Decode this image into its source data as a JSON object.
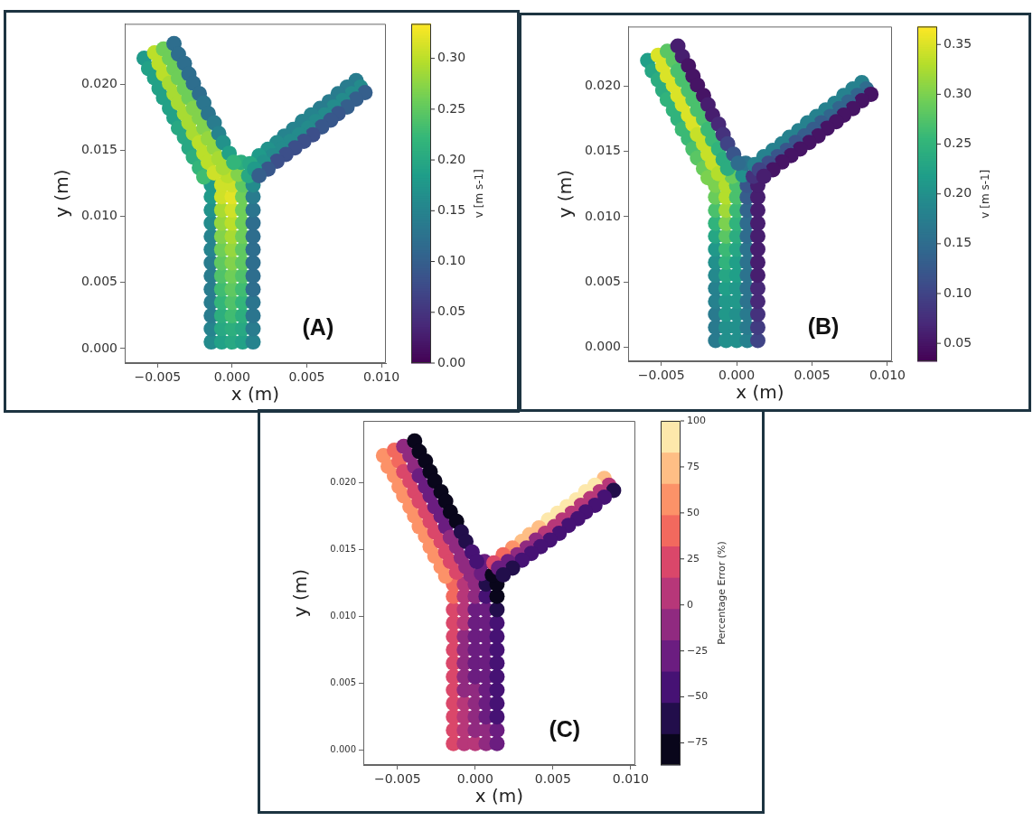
{
  "chart_data": [
    {
      "type": "scatter",
      "xlabel": "x (m)",
      "ylabel": "y (m)",
      "clabel": "v [m s-1]",
      "annotations": [
        "(A)"
      ],
      "marker": "circle",
      "xlim": [
        -0.0072,
        0.0103
      ],
      "ylim": [
        -0.0011,
        0.0246
      ],
      "xticks": [
        {
          "value": -0.005,
          "label": "−0.005"
        },
        {
          "value": 0,
          "label": "0.000"
        },
        {
          "value": 0.005,
          "label": "0.005"
        },
        {
          "value": 0.01,
          "label": "0.010"
        }
      ],
      "yticks": [
        {
          "value": 0,
          "label": "0.000"
        },
        {
          "value": 0.005,
          "label": "0.005"
        },
        {
          "value": 0.01,
          "label": "0.010"
        },
        {
          "value": 0.015,
          "label": "0.015"
        },
        {
          "value": 0.02,
          "label": "0.020"
        }
      ],
      "clim": [
        0,
        0.334
      ],
      "cticks": [
        {
          "value": 0,
          "label": "0.00"
        },
        {
          "value": 0.05,
          "label": "0.05"
        },
        {
          "value": 0.1,
          "label": "0.10"
        },
        {
          "value": 0.15,
          "label": "0.15"
        },
        {
          "value": 0.2,
          "label": "0.20"
        },
        {
          "value": 0.25,
          "label": "0.25"
        },
        {
          "value": 0.3,
          "label": "0.30"
        }
      ],
      "x": [
        -0.0014,
        -0.0007,
        0,
        0.0007,
        0.0014,
        -0.0014,
        -0.0007,
        0,
        0.0007,
        0.0014,
        -0.0014,
        -0.0007,
        0,
        0.0007,
        0.0014,
        -0.0014,
        -0.0007,
        0,
        0.0007,
        0.0014,
        -0.0014,
        -0.0007,
        0,
        0.0007,
        0.0014,
        -0.0014,
        -0.0007,
        0,
        0.0007,
        0.0014,
        -0.0014,
        -0.0007,
        0,
        0.0007,
        0.0014,
        -0.0014,
        -0.0007,
        0,
        0.0007,
        0.0014,
        -0.0014,
        -0.0007,
        0,
        0.0007,
        0.0014,
        -0.0014,
        -0.0007,
        0,
        0.0007,
        0.0014,
        -0.0014,
        -0.0007,
        0,
        0.0007,
        0.0014,
        -0.0014,
        -0.0007,
        0,
        0.0007,
        0.0014,
        -0.0014,
        -0.0007,
        0,
        0.0007,
        0.0014,
        -0.0003,
        0.0004,
        0.0011,
        0.0006,
        -0.0059,
        -0.0052,
        -0.0046,
        -0.0039,
        -0.0056,
        -0.0049,
        -0.0042,
        -0.0036,
        -0.0052,
        -0.0046,
        -0.0039,
        -0.0032,
        -0.0049,
        -0.0042,
        -0.0036,
        -0.0029,
        -0.0046,
        -0.0039,
        -0.0032,
        -0.0026,
        -0.0042,
        -0.0036,
        -0.0029,
        -0.0022,
        -0.0039,
        -0.0032,
        -0.0026,
        -0.0019,
        -0.0036,
        -0.0029,
        -0.0022,
        -0.0016,
        -0.0032,
        -0.0026,
        -0.0019,
        -0.0012,
        -0.0029,
        -0.0022,
        -0.0016,
        -0.0009,
        -0.0026,
        -0.0019,
        -0.0012,
        -0.0006,
        -0.0022,
        -0.0016,
        -0.0009,
        -0.0002,
        -0.0019,
        -0.0012,
        -0.0006,
        0.0001,
        0.0083,
        0.0086,
        0.0089,
        0.0077,
        0.008,
        0.0083,
        0.0071,
        0.0074,
        0.0077,
        0.0065,
        0.0068,
        0.0071,
        0.0059,
        0.0062,
        0.0066,
        0.0053,
        0.0056,
        0.006,
        0.0047,
        0.0051,
        0.0054,
        0.0041,
        0.0045,
        0.0048,
        0.0035,
        0.0039,
        0.0042,
        0.003,
        0.0033,
        0.0036,
        0.0024,
        0.0027,
        0.003,
        0.0018,
        0.0021,
        0.0024,
        0.0012,
        0.0015,
        0.0018
      ],
      "values": [
        0.0005,
        0.0005,
        0.0005,
        0.0005,
        0.0005,
        0.0015,
        0.0015,
        0.0015,
        0.0015,
        0.0015,
        0.0025,
        0.0025,
        0.0025,
        0.0025,
        0.0025,
        0.0035,
        0.0035,
        0.0035,
        0.0035,
        0.0035,
        0.0045,
        0.0045,
        0.0045,
        0.0045,
        0.0045,
        0.0055,
        0.0055,
        0.0055,
        0.0055,
        0.0055,
        0.0065,
        0.0065,
        0.0065,
        0.0065,
        0.0065,
        0.0075,
        0.0075,
        0.0075,
        0.0075,
        0.0075,
        0.0085,
        0.0085,
        0.0085,
        0.0085,
        0.0085,
        0.0095,
        0.0095,
        0.0095,
        0.0095,
        0.0095,
        0.0105,
        0.0105,
        0.0105,
        0.0105,
        0.0105,
        0.0115,
        0.0115,
        0.0115,
        0.0115,
        0.0115,
        0.0124,
        0.0124,
        0.0124,
        0.0124,
        0.0124,
        0.0131,
        0.0132,
        0.0131,
        0.0141,
        0.022,
        0.0224,
        0.0227,
        0.0231,
        0.0212,
        0.0216,
        0.022,
        0.0223,
        0.0205,
        0.0208,
        0.0212,
        0.0216,
        0.0197,
        0.0201,
        0.0205,
        0.0208,
        0.019,
        0.0193,
        0.0197,
        0.0201,
        0.0182,
        0.0186,
        0.019,
        0.0193,
        0.0175,
        0.0178,
        0.0182,
        0.0186,
        0.0167,
        0.0171,
        0.0175,
        0.0178,
        0.016,
        0.0163,
        0.0167,
        0.0171,
        0.0152,
        0.0156,
        0.0159,
        0.0163,
        0.0145,
        0.0148,
        0.0152,
        0.0156,
        0.0137,
        0.0141,
        0.0144,
        0.0148,
        0.013,
        0.0133,
        0.0137,
        0.0141,
        0.0203,
        0.0198,
        0.0194,
        0.0198,
        0.0193,
        0.0189,
        0.0193,
        0.0188,
        0.0183,
        0.0187,
        0.0183,
        0.0178,
        0.0182,
        0.0177,
        0.0173,
        0.0177,
        0.0172,
        0.0168,
        0.0172,
        0.0167,
        0.0162,
        0.0166,
        0.0162,
        0.0157,
        0.0161,
        0.0157,
        0.0152,
        0.0156,
        0.0151,
        0.0147,
        0.0151,
        0.0146,
        0.0142,
        0.0146,
        0.0141,
        0.0136,
        0.014,
        0.0136,
        0.0131
      ],
      "cvalues": [
        0.16,
        0.19,
        0.2,
        0.19,
        0.15,
        0.15,
        0.2,
        0.21,
        0.2,
        0.14,
        0.14,
        0.21,
        0.23,
        0.21,
        0.13,
        0.14,
        0.22,
        0.24,
        0.22,
        0.13,
        0.14,
        0.23,
        0.25,
        0.23,
        0.12,
        0.14,
        0.24,
        0.26,
        0.24,
        0.12,
        0.14,
        0.25,
        0.27,
        0.25,
        0.12,
        0.15,
        0.26,
        0.28,
        0.25,
        0.12,
        0.15,
        0.27,
        0.29,
        0.26,
        0.12,
        0.16,
        0.28,
        0.3,
        0.26,
        0.12,
        0.17,
        0.29,
        0.31,
        0.26,
        0.13,
        0.18,
        0.31,
        0.32,
        0.26,
        0.14,
        0.18,
        0.31,
        0.31,
        0.25,
        0.16,
        0.3,
        0.27,
        0.2,
        0.21,
        0.18,
        0.3,
        0.26,
        0.12,
        0.19,
        0.3,
        0.26,
        0.12,
        0.19,
        0.3,
        0.26,
        0.12,
        0.19,
        0.29,
        0.26,
        0.12,
        0.19,
        0.29,
        0.26,
        0.12,
        0.19,
        0.29,
        0.26,
        0.12,
        0.19,
        0.29,
        0.27,
        0.13,
        0.2,
        0.29,
        0.27,
        0.13,
        0.2,
        0.29,
        0.27,
        0.14,
        0.2,
        0.3,
        0.28,
        0.15,
        0.21,
        0.3,
        0.28,
        0.17,
        0.22,
        0.3,
        0.29,
        0.19,
        0.23,
        0.31,
        0.29,
        0.22,
        0.14,
        0.16,
        0.1,
        0.14,
        0.16,
        0.1,
        0.14,
        0.16,
        0.1,
        0.14,
        0.16,
        0.09,
        0.14,
        0.16,
        0.09,
        0.15,
        0.16,
        0.09,
        0.15,
        0.16,
        0.08,
        0.15,
        0.16,
        0.08,
        0.15,
        0.16,
        0.08,
        0.16,
        0.16,
        0.08,
        0.17,
        0.16,
        0.08,
        0.18,
        0.17,
        0.09,
        0.2,
        0.18,
        0.1
      ]
    },
    {
      "type": "scatter",
      "xlabel": "x (m)",
      "ylabel": "y (m)",
      "clabel": "v [m s-1]",
      "annotations": [
        "(B)"
      ],
      "marker": "circle",
      "xlim": [
        -0.0072,
        0.0103
      ],
      "ylim": [
        -0.0011,
        0.0246
      ],
      "xticks": [
        {
          "value": -0.005,
          "label": "−0.005"
        },
        {
          "value": 0,
          "label": "0.000"
        },
        {
          "value": 0.005,
          "label": "0.005"
        },
        {
          "value": 0.01,
          "label": "0.010"
        }
      ],
      "yticks": [
        {
          "value": 0,
          "label": "0.000"
        },
        {
          "value": 0.005,
          "label": "0.005"
        },
        {
          "value": 0.01,
          "label": "0.010"
        },
        {
          "value": 0.015,
          "label": "0.015"
        },
        {
          "value": 0.02,
          "label": "0.020"
        }
      ],
      "clim": [
        0.032,
        0.368
      ],
      "cticks": [
        {
          "value": 0.05,
          "label": "0.05"
        },
        {
          "value": 0.1,
          "label": "0.10"
        },
        {
          "value": 0.15,
          "label": "0.15"
        },
        {
          "value": 0.2,
          "label": "0.20"
        },
        {
          "value": 0.25,
          "label": "0.25"
        },
        {
          "value": 0.3,
          "label": "0.30"
        },
        {
          "value": 0.35,
          "label": "0.35"
        }
      ],
      "x": [
        -0.0014,
        -0.0007,
        0,
        0.0007,
        0.0014,
        -0.0014,
        -0.0007,
        0,
        0.0007,
        0.0014,
        -0.0014,
        -0.0007,
        0,
        0.0007,
        0.0014,
        -0.0014,
        -0.0007,
        0,
        0.0007,
        0.0014,
        -0.0014,
        -0.0007,
        0,
        0.0007,
        0.0014,
        -0.0014,
        -0.0007,
        0,
        0.0007,
        0.0014,
        -0.0014,
        -0.0007,
        0,
        0.0007,
        0.0014,
        -0.0014,
        -0.0007,
        0,
        0.0007,
        0.0014,
        -0.0014,
        -0.0007,
        0,
        0.0007,
        0.0014,
        -0.0014,
        -0.0007,
        0,
        0.0007,
        0.0014,
        -0.0014,
        -0.0007,
        0,
        0.0007,
        0.0014,
        -0.0014,
        -0.0007,
        0,
        0.0007,
        0.0014,
        -0.0014,
        -0.0007,
        0,
        0.0007,
        0.0014,
        -0.0003,
        0.0004,
        0.0011,
        0.0006,
        -0.0059,
        -0.0052,
        -0.0046,
        -0.0039,
        -0.0056,
        -0.0049,
        -0.0042,
        -0.0036,
        -0.0052,
        -0.0046,
        -0.0039,
        -0.0032,
        -0.0049,
        -0.0042,
        -0.0036,
        -0.0029,
        -0.0046,
        -0.0039,
        -0.0032,
        -0.0026,
        -0.0042,
        -0.0036,
        -0.0029,
        -0.0022,
        -0.0039,
        -0.0032,
        -0.0026,
        -0.0019,
        -0.0036,
        -0.0029,
        -0.0022,
        -0.0016,
        -0.0032,
        -0.0026,
        -0.0019,
        -0.0012,
        -0.0029,
        -0.0022,
        -0.0016,
        -0.0009,
        -0.0026,
        -0.0019,
        -0.0012,
        -0.0006,
        -0.0022,
        -0.0016,
        -0.0009,
        -0.0002,
        -0.0019,
        -0.0012,
        -0.0006,
        0.0001,
        0.0083,
        0.0086,
        0.0089,
        0.0077,
        0.008,
        0.0083,
        0.0071,
        0.0074,
        0.0077,
        0.0065,
        0.0068,
        0.0071,
        0.0059,
        0.0062,
        0.0066,
        0.0053,
        0.0056,
        0.006,
        0.0047,
        0.0051,
        0.0054,
        0.0041,
        0.0045,
        0.0048,
        0.0035,
        0.0039,
        0.0042,
        0.003,
        0.0033,
        0.0036,
        0.0024,
        0.0027,
        0.003,
        0.0018,
        0.0021,
        0.0024,
        0.0012,
        0.0015,
        0.0018
      ],
      "values": [
        0.0005,
        0.0005,
        0.0005,
        0.0005,
        0.0005,
        0.0015,
        0.0015,
        0.0015,
        0.0015,
        0.0015,
        0.0025,
        0.0025,
        0.0025,
        0.0025,
        0.0025,
        0.0035,
        0.0035,
        0.0035,
        0.0035,
        0.0035,
        0.0045,
        0.0045,
        0.0045,
        0.0045,
        0.0045,
        0.0055,
        0.0055,
        0.0055,
        0.0055,
        0.0055,
        0.0065,
        0.0065,
        0.0065,
        0.0065,
        0.0065,
        0.0075,
        0.0075,
        0.0075,
        0.0075,
        0.0075,
        0.0085,
        0.0085,
        0.0085,
        0.0085,
        0.0085,
        0.0095,
        0.0095,
        0.0095,
        0.0095,
        0.0095,
        0.0105,
        0.0105,
        0.0105,
        0.0105,
        0.0105,
        0.0115,
        0.0115,
        0.0115,
        0.0115,
        0.0115,
        0.0124,
        0.0124,
        0.0124,
        0.0124,
        0.0124,
        0.0131,
        0.0132,
        0.0131,
        0.0141,
        0.022,
        0.0224,
        0.0227,
        0.0231,
        0.0212,
        0.0216,
        0.022,
        0.0223,
        0.0205,
        0.0208,
        0.0212,
        0.0216,
        0.0197,
        0.0201,
        0.0205,
        0.0208,
        0.019,
        0.0193,
        0.0197,
        0.0201,
        0.0182,
        0.0186,
        0.019,
        0.0193,
        0.0175,
        0.0178,
        0.0182,
        0.0186,
        0.0167,
        0.0171,
        0.0175,
        0.0178,
        0.016,
        0.0163,
        0.0167,
        0.0171,
        0.0152,
        0.0156,
        0.0159,
        0.0163,
        0.0145,
        0.0148,
        0.0152,
        0.0156,
        0.0137,
        0.0141,
        0.0144,
        0.0148,
        0.013,
        0.0133,
        0.0137,
        0.0141,
        0.0203,
        0.0198,
        0.0194,
        0.0198,
        0.0193,
        0.0189,
        0.0193,
        0.0188,
        0.0183,
        0.0187,
        0.0183,
        0.0178,
        0.0182,
        0.0177,
        0.0173,
        0.0177,
        0.0172,
        0.0168,
        0.0172,
        0.0167,
        0.0162,
        0.0166,
        0.0162,
        0.0157,
        0.0161,
        0.0157,
        0.0152,
        0.0156,
        0.0151,
        0.0147,
        0.0151,
        0.0146,
        0.0142,
        0.0146,
        0.0141,
        0.0136,
        0.014,
        0.0136,
        0.0131
      ],
      "cvalues": [
        0.17,
        0.2,
        0.2,
        0.18,
        0.1,
        0.17,
        0.2,
        0.2,
        0.17,
        0.09,
        0.17,
        0.21,
        0.2,
        0.17,
        0.08,
        0.18,
        0.21,
        0.21,
        0.16,
        0.07,
        0.18,
        0.22,
        0.21,
        0.16,
        0.07,
        0.19,
        0.23,
        0.22,
        0.16,
        0.06,
        0.2,
        0.25,
        0.22,
        0.16,
        0.06,
        0.21,
        0.26,
        0.23,
        0.16,
        0.06,
        0.23,
        0.28,
        0.24,
        0.15,
        0.06,
        0.25,
        0.3,
        0.25,
        0.15,
        0.06,
        0.27,
        0.32,
        0.26,
        0.14,
        0.06,
        0.29,
        0.33,
        0.27,
        0.13,
        0.06,
        0.3,
        0.33,
        0.27,
        0.12,
        0.06,
        0.29,
        0.2,
        0.08,
        0.16,
        0.22,
        0.35,
        0.28,
        0.06,
        0.23,
        0.35,
        0.28,
        0.06,
        0.24,
        0.35,
        0.27,
        0.05,
        0.24,
        0.35,
        0.27,
        0.05,
        0.25,
        0.35,
        0.27,
        0.05,
        0.25,
        0.35,
        0.27,
        0.05,
        0.25,
        0.35,
        0.27,
        0.06,
        0.26,
        0.35,
        0.27,
        0.06,
        0.26,
        0.34,
        0.26,
        0.07,
        0.27,
        0.34,
        0.26,
        0.08,
        0.28,
        0.34,
        0.25,
        0.1,
        0.29,
        0.34,
        0.24,
        0.12,
        0.3,
        0.33,
        0.24,
        0.15,
        0.18,
        0.15,
        0.05,
        0.18,
        0.14,
        0.05,
        0.18,
        0.14,
        0.05,
        0.18,
        0.14,
        0.05,
        0.18,
        0.14,
        0.05,
        0.18,
        0.13,
        0.05,
        0.18,
        0.13,
        0.05,
        0.18,
        0.13,
        0.05,
        0.18,
        0.12,
        0.05,
        0.18,
        0.12,
        0.05,
        0.18,
        0.12,
        0.05,
        0.18,
        0.11,
        0.05,
        0.18,
        0.1,
        0.06
      ]
    },
    {
      "type": "scatter",
      "xlabel": "x (m)",
      "ylabel": "y (m)",
      "clabel": "Percentage Error (%)",
      "annotations": [
        "(C)"
      ],
      "marker": "circle",
      "xlim": [
        -0.0072,
        0.0103
      ],
      "ylim": [
        -0.0011,
        0.0246
      ],
      "xticks": [
        {
          "value": -0.005,
          "label": "−0.005"
        },
        {
          "value": 0,
          "label": "0.000"
        },
        {
          "value": 0.005,
          "label": "0.005"
        },
        {
          "value": 0.01,
          "label": "0.010"
        }
      ],
      "yticks": [
        {
          "value": 0,
          "label": "0.000"
        },
        {
          "value": 0.005,
          "label": "0.005"
        },
        {
          "value": 0.01,
          "label": "0.010"
        },
        {
          "value": 0.015,
          "label": "0.015"
        },
        {
          "value": 0.02,
          "label": "0.020"
        }
      ],
      "clim": [
        -87,
        100
      ],
      "cticks": [
        {
          "value": -75,
          "label": "−75"
        },
        {
          "value": -50,
          "label": "−50"
        },
        {
          "value": -25,
          "label": "−25"
        },
        0,
        25,
        50,
        75,
        100
      ],
      "x": [
        -0.0014,
        -0.0007,
        0,
        0.0007,
        0.0014,
        -0.0014,
        -0.0007,
        0,
        0.0007,
        0.0014,
        -0.0014,
        -0.0007,
        0,
        0.0007,
        0.0014,
        -0.0014,
        -0.0007,
        0,
        0.0007,
        0.0014,
        -0.0014,
        -0.0007,
        0,
        0.0007,
        0.0014,
        -0.0014,
        -0.0007,
        0,
        0.0007,
        0.0014,
        -0.0014,
        -0.0007,
        0,
        0.0007,
        0.0014,
        -0.0014,
        -0.0007,
        0,
        0.0007,
        0.0014,
        -0.0014,
        -0.0007,
        0,
        0.0007,
        0.0014,
        -0.0014,
        -0.0007,
        0,
        0.0007,
        0.0014,
        -0.0014,
        -0.0007,
        0,
        0.0007,
        0.0014,
        -0.0014,
        -0.0007,
        0,
        0.0007,
        0.0014,
        -0.0014,
        -0.0007,
        0,
        0.0007,
        0.0014,
        -0.0003,
        0.0004,
        0.0011,
        0.0006,
        -0.0059,
        -0.0052,
        -0.0046,
        -0.0039,
        -0.0056,
        -0.0049,
        -0.0042,
        -0.0036,
        -0.0052,
        -0.0046,
        -0.0039,
        -0.0032,
        -0.0049,
        -0.0042,
        -0.0036,
        -0.0029,
        -0.0046,
        -0.0039,
        -0.0032,
        -0.0026,
        -0.0042,
        -0.0036,
        -0.0029,
        -0.0022,
        -0.0039,
        -0.0032,
        -0.0026,
        -0.0019,
        -0.0036,
        -0.0029,
        -0.0022,
        -0.0016,
        -0.0032,
        -0.0026,
        -0.0019,
        -0.0012,
        -0.0029,
        -0.0022,
        -0.0016,
        -0.0009,
        -0.0026,
        -0.0019,
        -0.0012,
        -0.0006,
        -0.0022,
        -0.0016,
        -0.0009,
        -0.0002,
        -0.0019,
        -0.0012,
        -0.0006,
        0.0001,
        0.0083,
        0.0086,
        0.0089,
        0.0077,
        0.008,
        0.0083,
        0.0071,
        0.0074,
        0.0077,
        0.0065,
        0.0068,
        0.0071,
        0.0059,
        0.0062,
        0.0066,
        0.0053,
        0.0056,
        0.006,
        0.0047,
        0.0051,
        0.0054,
        0.0041,
        0.0045,
        0.0048,
        0.0035,
        0.0039,
        0.0042,
        0.003,
        0.0033,
        0.0036,
        0.0024,
        0.0027,
        0.003,
        0.0018,
        0.0021,
        0.0024,
        0.0012,
        0.0015,
        0.0018
      ],
      "values": [
        0.0005,
        0.0005,
        0.0005,
        0.0005,
        0.0005,
        0.0015,
        0.0015,
        0.0015,
        0.0015,
        0.0015,
        0.0025,
        0.0025,
        0.0025,
        0.0025,
        0.0025,
        0.0035,
        0.0035,
        0.0035,
        0.0035,
        0.0035,
        0.0045,
        0.0045,
        0.0045,
        0.0045,
        0.0045,
        0.0055,
        0.0055,
        0.0055,
        0.0055,
        0.0055,
        0.0065,
        0.0065,
        0.0065,
        0.0065,
        0.0065,
        0.0075,
        0.0075,
        0.0075,
        0.0075,
        0.0075,
        0.0085,
        0.0085,
        0.0085,
        0.0085,
        0.0085,
        0.0095,
        0.0095,
        0.0095,
        0.0095,
        0.0095,
        0.0105,
        0.0105,
        0.0105,
        0.0105,
        0.0105,
        0.0115,
        0.0115,
        0.0115,
        0.0115,
        0.0115,
        0.0124,
        0.0124,
        0.0124,
        0.0124,
        0.0124,
        0.0131,
        0.0132,
        0.0131,
        0.0141,
        0.022,
        0.0224,
        0.0227,
        0.0231,
        0.0212,
        0.0216,
        0.022,
        0.0223,
        0.0205,
        0.0208,
        0.0212,
        0.0216,
        0.0197,
        0.0201,
        0.0205,
        0.0208,
        0.019,
        0.0193,
        0.0197,
        0.0201,
        0.0182,
        0.0186,
        0.019,
        0.0193,
        0.0175,
        0.0178,
        0.0182,
        0.0186,
        0.0167,
        0.0171,
        0.0175,
        0.0178,
        0.016,
        0.0163,
        0.0167,
        0.0171,
        0.0152,
        0.0156,
        0.0159,
        0.0163,
        0.0145,
        0.0148,
        0.0152,
        0.0156,
        0.0137,
        0.0141,
        0.0144,
        0.0148,
        0.013,
        0.0133,
        0.0137,
        0.0141,
        0.0203,
        0.0198,
        0.0194,
        0.0198,
        0.0193,
        0.0189,
        0.0193,
        0.0188,
        0.0183,
        0.0187,
        0.0183,
        0.0178,
        0.0182,
        0.0177,
        0.0173,
        0.0177,
        0.0172,
        0.0168,
        0.0172,
        0.0167,
        0.0162,
        0.0166,
        0.0162,
        0.0157,
        0.0161,
        0.0157,
        0.0152,
        0.0156,
        0.0151,
        0.0147,
        0.0151,
        0.0146,
        0.0142,
        0.0146,
        0.0141,
        0.0136,
        0.014,
        0.0136,
        0.0131
      ],
      "cvalues": [
        30,
        10,
        0,
        -10,
        -30,
        30,
        5,
        -5,
        -15,
        -35,
        25,
        0,
        -10,
        -20,
        -40,
        25,
        0,
        -15,
        -25,
        -40,
        25,
        -5,
        -15,
        -25,
        -40,
        25,
        -5,
        -20,
        -30,
        -45,
        25,
        -5,
        -20,
        -30,
        -45,
        25,
        -5,
        -20,
        -30,
        -45,
        25,
        -5,
        -20,
        -30,
        -45,
        30,
        0,
        -20,
        -30,
        -50,
        30,
        0,
        -20,
        -35,
        -60,
        35,
        5,
        -15,
        -45,
        -80,
        40,
        10,
        -15,
        -60,
        -80,
        -10,
        -35,
        -80,
        -30,
        50,
        35,
        -10,
        -75,
        50,
        35,
        -15,
        -80,
        50,
        30,
        -15,
        -80,
        50,
        30,
        -20,
        -80,
        50,
        30,
        -20,
        -80,
        55,
        30,
        -20,
        -80,
        55,
        30,
        -20,
        -80,
        60,
        30,
        -20,
        -80,
        60,
        30,
        -20,
        -75,
        60,
        30,
        -15,
        -70,
        60,
        25,
        -15,
        -60,
        55,
        25,
        -15,
        -50,
        50,
        20,
        -15,
        -40,
        80,
        0,
        -55,
        85,
        5,
        -50,
        85,
        5,
        -50,
        85,
        5,
        -45,
        85,
        0,
        -45,
        85,
        0,
        -45,
        85,
        0,
        -45,
        80,
        0,
        -45,
        75,
        -5,
        -45,
        70,
        -10,
        -45,
        60,
        -15,
        -50,
        40,
        -20,
        -55,
        20,
        -25,
        -60
      ]
    }
  ]
}
